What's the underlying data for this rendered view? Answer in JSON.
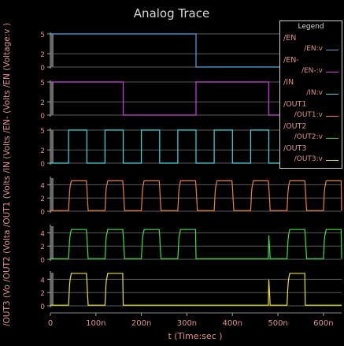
{
  "chart_data": {
    "type": "line",
    "title": "Analog Trace",
    "xlabel": "t (Time:sec )",
    "x_ticks": [
      "0",
      "100n",
      "200n",
      "300n",
      "400n",
      "500n",
      "600n"
    ],
    "xlim": [
      0,
      640
    ],
    "y_ticks": [
      "0",
      "2",
      "5"
    ],
    "y_ticks_out": [
      "0",
      "2",
      "4"
    ],
    "ylabels": [
      "/EN (Voltage:v )",
      "/EN- (Volts",
      "/IN (Volts",
      "/OUT1 (Volts",
      "/OUT2 (Volta",
      "/OUT3 (Vo"
    ],
    "legend_title": "Legend",
    "panels": [
      {
        "name": "/EN",
        "signal": "/EN:v",
        "color": "#5aa0dc",
        "ylim": [
          0,
          5
        ],
        "x": [
          0,
          320,
          320,
          640
        ],
        "y": [
          5,
          5,
          0,
          0
        ]
      },
      {
        "name": "/EN-",
        "signal": "/EN-:v",
        "color": "#d040d8",
        "ylim": [
          0,
          5
        ],
        "x": [
          0,
          160,
          160,
          320,
          320,
          480,
          480,
          640
        ],
        "y": [
          5,
          5,
          0,
          0,
          5,
          5,
          0,
          0
        ]
      },
      {
        "name": "/IN",
        "signal": "/IN:v",
        "color": "#40d8e0",
        "ylim": [
          0,
          5
        ],
        "period_ns": 80,
        "high_ns": 40,
        "start_ns": 40,
        "high_v": 5,
        "low_v": 0
      },
      {
        "name": "/OUT1",
        "signal": "/OUT1:v",
        "color": "#e88040",
        "ylim": [
          0,
          5
        ],
        "pattern": "osc",
        "period_ns": 80,
        "high_v": 4.6,
        "low_v": 0.1,
        "on_intervals": [
          [
            40,
            640
          ]
        ]
      },
      {
        "name": "/OUT2",
        "signal": "/OUT2:v",
        "color": "#40e040",
        "ylim": [
          0,
          5
        ],
        "pattern": "osc_gated",
        "period_ns": 80,
        "high_v": 4.5,
        "low_v": 0.1,
        "on_intervals": [
          [
            40,
            320
          ],
          [
            480,
            640
          ]
        ]
      },
      {
        "name": "/OUT3",
        "signal": "/OUT3:v",
        "color": "#e8e040",
        "ylim": [
          0,
          5
        ],
        "pattern": "osc_gated",
        "period_ns": 80,
        "high_v": 4.9,
        "low_v": 0.1,
        "on_intervals": [
          [
            40,
            160
          ],
          [
            480,
            560
          ]
        ]
      }
    ]
  }
}
